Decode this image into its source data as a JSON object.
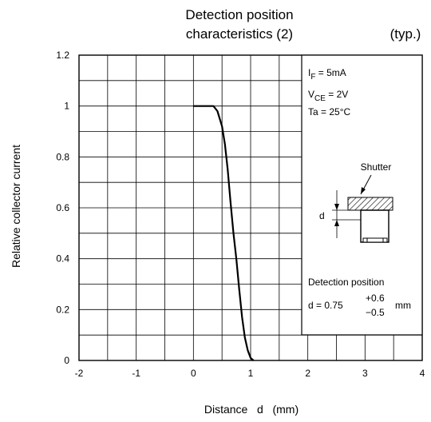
{
  "chart_data": {
    "type": "line",
    "title_line1": "Detection position",
    "title_line2": "characteristics (2)",
    "subtitle": "(typ.)",
    "xlabel": "Distance   d   (mm)",
    "ylabel": "Relative collector current",
    "xlim": [
      -2,
      4
    ],
    "ylim": [
      0,
      1.2
    ],
    "x_ticks": [
      -2,
      -1,
      0,
      1,
      2,
      3,
      4
    ],
    "y_ticks": [
      0,
      0.2,
      0.4,
      0.6,
      0.8,
      1,
      1.2
    ],
    "x_tick_labels": [
      "-2",
      "-1",
      "0",
      "1",
      "2",
      "3",
      "4"
    ],
    "y_tick_labels": [
      "0",
      "0.2",
      "0.4",
      "0.6",
      "0.8",
      "1",
      "1.2"
    ],
    "grid": true,
    "series": [
      {
        "values_x": [
          0.0,
          0.35,
          0.42,
          0.5,
          0.55,
          0.6,
          0.65,
          0.7,
          0.75,
          0.8,
          0.85,
          0.9,
          0.95,
          1.0,
          1.05
        ],
        "values_y": [
          1.0,
          1.0,
          0.98,
          0.92,
          0.85,
          0.75,
          0.62,
          0.5,
          0.4,
          0.28,
          0.17,
          0.09,
          0.04,
          0.01,
          0.0
        ]
      }
    ],
    "conditions": {
      "if_main": "I",
      "if_sub": "F",
      "if_rest": " = 5mA",
      "vce_main": "V",
      "vce_sub": "CE",
      "vce_rest": " = 2V",
      "ta": "Ta = 25°C"
    },
    "inset": {
      "shutter_label": "Shutter",
      "d_label": "d",
      "detection_title": "Detection position",
      "detection_value": "d = 0.75",
      "tol_plus": "+0.6",
      "tol_minus": "−0.5",
      "unit": "mm"
    }
  }
}
